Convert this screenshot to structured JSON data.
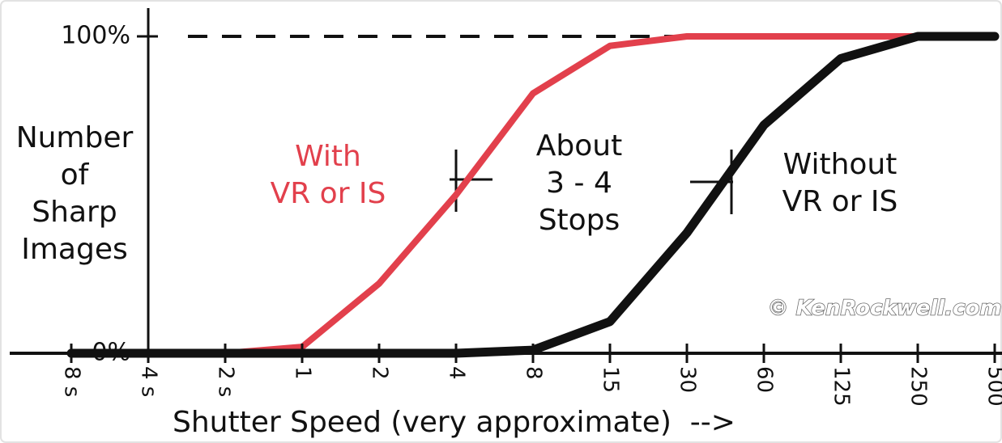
{
  "chart_data": {
    "type": "line",
    "categories": [
      "8 s",
      "4 s",
      "2 s",
      "1",
      "2",
      "4",
      "8",
      "15",
      "30",
      "60",
      "125",
      "250",
      "500"
    ],
    "series": [
      {
        "name": "With VR or IS",
        "color": "#e2404c",
        "values": [
          null,
          0,
          0,
          2,
          22,
          50,
          82,
          97,
          100,
          100,
          100,
          100,
          100
        ]
      },
      {
        "name": "Without VR or IS",
        "color": "#111111",
        "values": [
          0,
          0,
          0,
          0,
          0,
          0,
          1,
          10,
          38,
          72,
          93,
          100,
          100
        ]
      }
    ],
    "ylim": [
      0,
      100
    ],
    "yticks": [
      {
        "value": 0,
        "label": "0%"
      },
      {
        "value": 100,
        "label": "100%"
      }
    ],
    "ylabel": [
      "Number",
      "of",
      "Sharp",
      "Images"
    ],
    "xlabel": "Shutter Speed (very approximate)  -->",
    "annotations": [
      {
        "lines": [
          "With",
          "VR or IS"
        ],
        "color": "#e2404c"
      },
      {
        "lines": [
          "About",
          "3 - 4",
          "Stops"
        ],
        "color": "#111111"
      },
      {
        "lines": [
          "Without",
          "VR or IS"
        ],
        "color": "#111111"
      }
    ],
    "watermark": "© KenRockwell.com"
  }
}
